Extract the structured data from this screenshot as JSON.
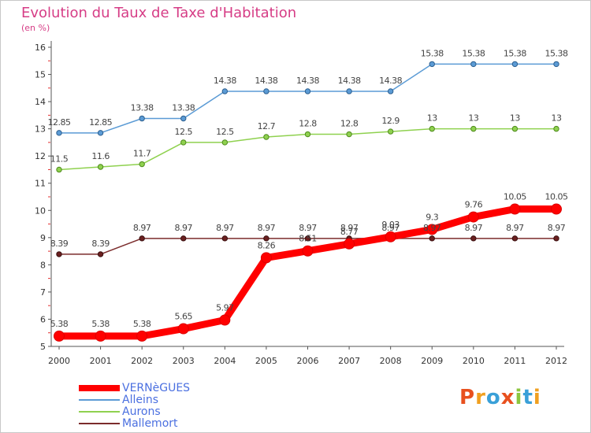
{
  "header": {
    "title": "Evolution du Taux de Taxe d'Habitation",
    "subtitle": "(en %)"
  },
  "logo": {
    "text": "Proxiti",
    "letters": [
      "P",
      "r",
      "o",
      "x",
      "i",
      "t",
      "i"
    ],
    "colors": [
      "#e8501e",
      "#f0a020",
      "#3aa0d8",
      "#e8501e",
      "#8cc63f",
      "#3aa0d8",
      "#f0a020"
    ]
  },
  "chart_data": {
    "type": "line",
    "title": "Evolution du Taux de Taxe d'Habitation",
    "ylabel": "(en %)",
    "xlabel": "",
    "x": [
      "2000",
      "2001",
      "2002",
      "2003",
      "2004",
      "2005",
      "2006",
      "2007",
      "2008",
      "2009",
      "2010",
      "2011",
      "2012"
    ],
    "ylim": [
      5,
      16
    ],
    "yticks": [
      "5",
      "6",
      "7",
      "8",
      "9",
      "10",
      "11",
      "12",
      "13",
      "14",
      "15",
      "16"
    ],
    "grid": false,
    "legend_position": "bottom-left",
    "series": [
      {
        "name": "VERNèGUES",
        "color": "#ff0000",
        "values": [
          5.38,
          5.38,
          5.38,
          5.65,
          5.97,
          8.26,
          8.51,
          8.77,
          9.03,
          9.3,
          9.76,
          10.05,
          10.05
        ],
        "labels": [
          "5.38",
          "5.38",
          "5.38",
          "5.65",
          "5.97",
          "8.26",
          "8.51",
          "8.77",
          "9.03",
          "9.3",
          "9.76",
          "10.05",
          "10.05"
        ]
      },
      {
        "name": "Alleins",
        "color": "#5b9bd5",
        "values": [
          12.85,
          12.85,
          13.38,
          13.38,
          14.38,
          14.38,
          14.38,
          14.38,
          14.38,
          15.38,
          15.38,
          15.38,
          15.38
        ],
        "labels": [
          "12.85",
          "12.85",
          "13.38",
          "13.38",
          "14.38",
          "14.38",
          "14.38",
          "14.38",
          "14.38",
          "15.38",
          "15.38",
          "15.38",
          "15.38"
        ]
      },
      {
        "name": "Aurons",
        "color": "#8fd14f",
        "values": [
          11.5,
          11.6,
          11.7,
          12.5,
          12.5,
          12.7,
          12.8,
          12.8,
          12.9,
          13,
          13,
          13,
          13
        ],
        "labels": [
          "11.5",
          "11.6",
          "11.7",
          "12.5",
          "12.5",
          "12.7",
          "12.8",
          "12.8",
          "12.9",
          "13",
          "13",
          "13",
          "13"
        ]
      },
      {
        "name": "Mallemort",
        "color": "#7b2c2c",
        "values": [
          8.39,
          8.39,
          8.97,
          8.97,
          8.97,
          8.97,
          8.97,
          8.97,
          8.97,
          8.97,
          8.97,
          8.97,
          8.97
        ],
        "labels": [
          "8.39",
          "8.39",
          "8.97",
          "8.97",
          "8.97",
          "8.97",
          "8.97",
          "8.97",
          "8.97",
          "8.97",
          "8.97",
          "8.97",
          "8.97"
        ]
      }
    ]
  }
}
